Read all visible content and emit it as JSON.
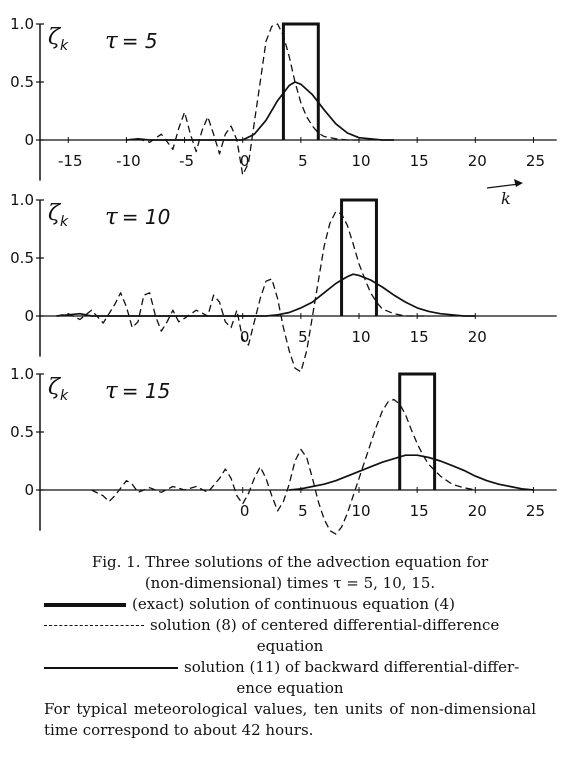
{
  "chart_data": [
    {
      "type": "line",
      "tau_label": "τ = 5",
      "ylabel": "ζk",
      "xlabel": "k",
      "xlim": [
        -17,
        27
      ],
      "ylim": [
        -0.35,
        1.0
      ],
      "xticks": [
        "-15",
        "-10",
        "-5",
        "0",
        "5",
        "10",
        "15",
        "20",
        "25"
      ],
      "yticks": [
        "1.0",
        "0.5",
        "0"
      ],
      "exact_pulse": {
        "x0": 3.5,
        "x1": 6.5,
        "height": 1.0
      },
      "series": [
        {
          "style": "dashed",
          "x": [
            -10,
            -9,
            -8,
            -7,
            -6,
            -5.5,
            -5,
            -4.5,
            -4,
            -3.5,
            -3,
            -2.5,
            -2,
            -1.5,
            -1,
            -0.5,
            0,
            0.5,
            1,
            1.5,
            2,
            2.5,
            3,
            3.5,
            4,
            4.5,
            5,
            5.5,
            6,
            6.5,
            7,
            8,
            9,
            10
          ],
          "y": [
            0,
            0.01,
            -0.02,
            0.05,
            -0.08,
            0.1,
            0.24,
            0.05,
            -0.1,
            0.08,
            0.2,
            0.05,
            -0.12,
            0.05,
            0.12,
            0,
            -0.3,
            -0.2,
            0.15,
            0.5,
            0.85,
            0.98,
            1.0,
            0.9,
            0.72,
            0.5,
            0.32,
            0.2,
            0.12,
            0.06,
            0.03,
            0.01,
            0,
            0
          ]
        },
        {
          "style": "solid",
          "x": [
            -10,
            -9,
            -8,
            0,
            1,
            2,
            3,
            4,
            4.5,
            5,
            6,
            7,
            8,
            9,
            10,
            11,
            12,
            13
          ],
          "y": [
            0,
            0.01,
            0,
            0,
            0.05,
            0.17,
            0.34,
            0.47,
            0.5,
            0.48,
            0.39,
            0.26,
            0.14,
            0.06,
            0.02,
            0.01,
            0,
            0
          ]
        }
      ]
    },
    {
      "type": "line",
      "tau_label": "τ = 10",
      "ylabel": "ζk",
      "xlabel": "",
      "xlim": [
        -17,
        27
      ],
      "ylim": [
        -0.35,
        1.0
      ],
      "xticks": [
        "0",
        "5",
        "10",
        "15",
        "20"
      ],
      "yticks": [
        "1.0",
        "0.5",
        "0"
      ],
      "exact_pulse": {
        "x0": 8.5,
        "x1": 11.5,
        "height": 1.0
      },
      "series": [
        {
          "style": "dashed",
          "x": [
            -16,
            -15,
            -14,
            -13,
            -12,
            -11,
            -10.5,
            -10,
            -9.5,
            -9,
            -8.5,
            -8,
            -7.5,
            -7,
            -6.5,
            -6,
            -5.5,
            -5,
            -4,
            -3,
            -2.5,
            -2,
            -1.5,
            -1,
            -0.5,
            0,
            0.5,
            1,
            1.5,
            2,
            2.5,
            3,
            3.5,
            4,
            4.5,
            5,
            5.5,
            6,
            6.5,
            7,
            7.5,
            8,
            8.5,
            9,
            9.5,
            10,
            10.5,
            11,
            11.5,
            12,
            13,
            14,
            15,
            16
          ],
          "y": [
            0,
            0.02,
            -0.03,
            0.05,
            -0.06,
            0.1,
            0.2,
            0.08,
            -0.1,
            -0.05,
            0.18,
            0.2,
            0.0,
            -0.13,
            -0.05,
            0.05,
            -0.05,
            -0.02,
            0.05,
            0.0,
            0.18,
            0.12,
            -0.05,
            -0.1,
            0.05,
            -0.2,
            -0.25,
            -0.05,
            0.15,
            0.3,
            0.32,
            0.15,
            -0.1,
            -0.3,
            -0.45,
            -0.48,
            -0.3,
            0.0,
            0.3,
            0.6,
            0.8,
            0.9,
            0.88,
            0.78,
            0.62,
            0.45,
            0.32,
            0.2,
            0.12,
            0.06,
            0.02,
            0.0,
            0,
            0
          ]
        },
        {
          "style": "solid",
          "x": [
            -16,
            -15,
            -14,
            -13,
            2,
            3,
            4,
            5,
            6,
            7,
            8,
            9,
            9.5,
            10,
            11,
            12,
            13,
            14,
            15,
            16,
            17,
            18,
            19,
            20
          ],
          "y": [
            0,
            0.01,
            0.02,
            0,
            0,
            0.01,
            0.03,
            0.07,
            0.12,
            0.2,
            0.28,
            0.34,
            0.36,
            0.35,
            0.31,
            0.25,
            0.18,
            0.12,
            0.07,
            0.04,
            0.02,
            0.01,
            0,
            0
          ]
        }
      ]
    },
    {
      "type": "line",
      "tau_label": "τ = 15",
      "ylabel": "ζk",
      "xlabel": "",
      "xlim": [
        -17,
        27
      ],
      "ylim": [
        -0.35,
        1.0
      ],
      "xticks": [
        "0",
        "5",
        "10",
        "15",
        "20",
        "25"
      ],
      "yticks": [
        "1.0",
        "0.5",
        "0"
      ],
      "exact_pulse": {
        "x0": 13.5,
        "x1": 16.5,
        "height": 1.0
      },
      "series": [
        {
          "style": "dashed",
          "x": [
            -13,
            -12,
            -11.5,
            -11,
            -10,
            -9.5,
            -9,
            -8,
            -7,
            -6,
            -5,
            -4,
            -3,
            -2,
            -1.5,
            -1,
            -0.5,
            0,
            0.5,
            1,
            1.5,
            2,
            2.5,
            3,
            3.5,
            4,
            4.5,
            5,
            5.5,
            6,
            6.5,
            7,
            7.5,
            8,
            8.5,
            9,
            9.5,
            10,
            10.5,
            11,
            11.5,
            12,
            12.5,
            13,
            13.5,
            14,
            14.5,
            15,
            15.5,
            16,
            17,
            18,
            19,
            20
          ],
          "y": [
            0,
            -0.05,
            -0.1,
            -0.05,
            0.08,
            0.05,
            -0.02,
            0.02,
            -0.02,
            0.03,
            0.0,
            0.03,
            -0.02,
            0.1,
            0.18,
            0.1,
            -0.05,
            -0.12,
            -0.03,
            0.1,
            0.2,
            0.1,
            -0.05,
            -0.18,
            -0.1,
            0.05,
            0.25,
            0.35,
            0.28,
            0.1,
            -0.1,
            -0.25,
            -0.35,
            -0.38,
            -0.32,
            -0.2,
            -0.05,
            0.1,
            0.25,
            0.4,
            0.55,
            0.68,
            0.76,
            0.78,
            0.74,
            0.65,
            0.52,
            0.4,
            0.3,
            0.22,
            0.12,
            0.05,
            0.02,
            0
          ]
        },
        {
          "style": "solid",
          "x": [
            4,
            5,
            6,
            7,
            8,
            9,
            10,
            11,
            12,
            13,
            14,
            14.5,
            15,
            16,
            17,
            18,
            19,
            20,
            21,
            22,
            23,
            24,
            25
          ],
          "y": [
            0,
            0.01,
            0.03,
            0.05,
            0.08,
            0.12,
            0.16,
            0.2,
            0.24,
            0.27,
            0.3,
            0.3,
            0.3,
            0.28,
            0.25,
            0.21,
            0.17,
            0.12,
            0.08,
            0.05,
            0.03,
            0.01,
            0
          ]
        }
      ]
    }
  ],
  "caption": {
    "line1": "Fig. 1. Three solutions of the advection equation for",
    "line2": "(non-dimensional) times τ = 5, 10, 15.",
    "legend": [
      {
        "text": "(exact) solution of continuous equation (4)",
        "cont": ""
      },
      {
        "text": "solution (8) of centered differential-difference",
        "cont": "equation"
      },
      {
        "text": "solution (11) of backward differential-differ-",
        "cont": "ence equation"
      }
    ],
    "note": "For typical meteorological values, ten units of non-dimensional time correspond to about 42 hours."
  }
}
